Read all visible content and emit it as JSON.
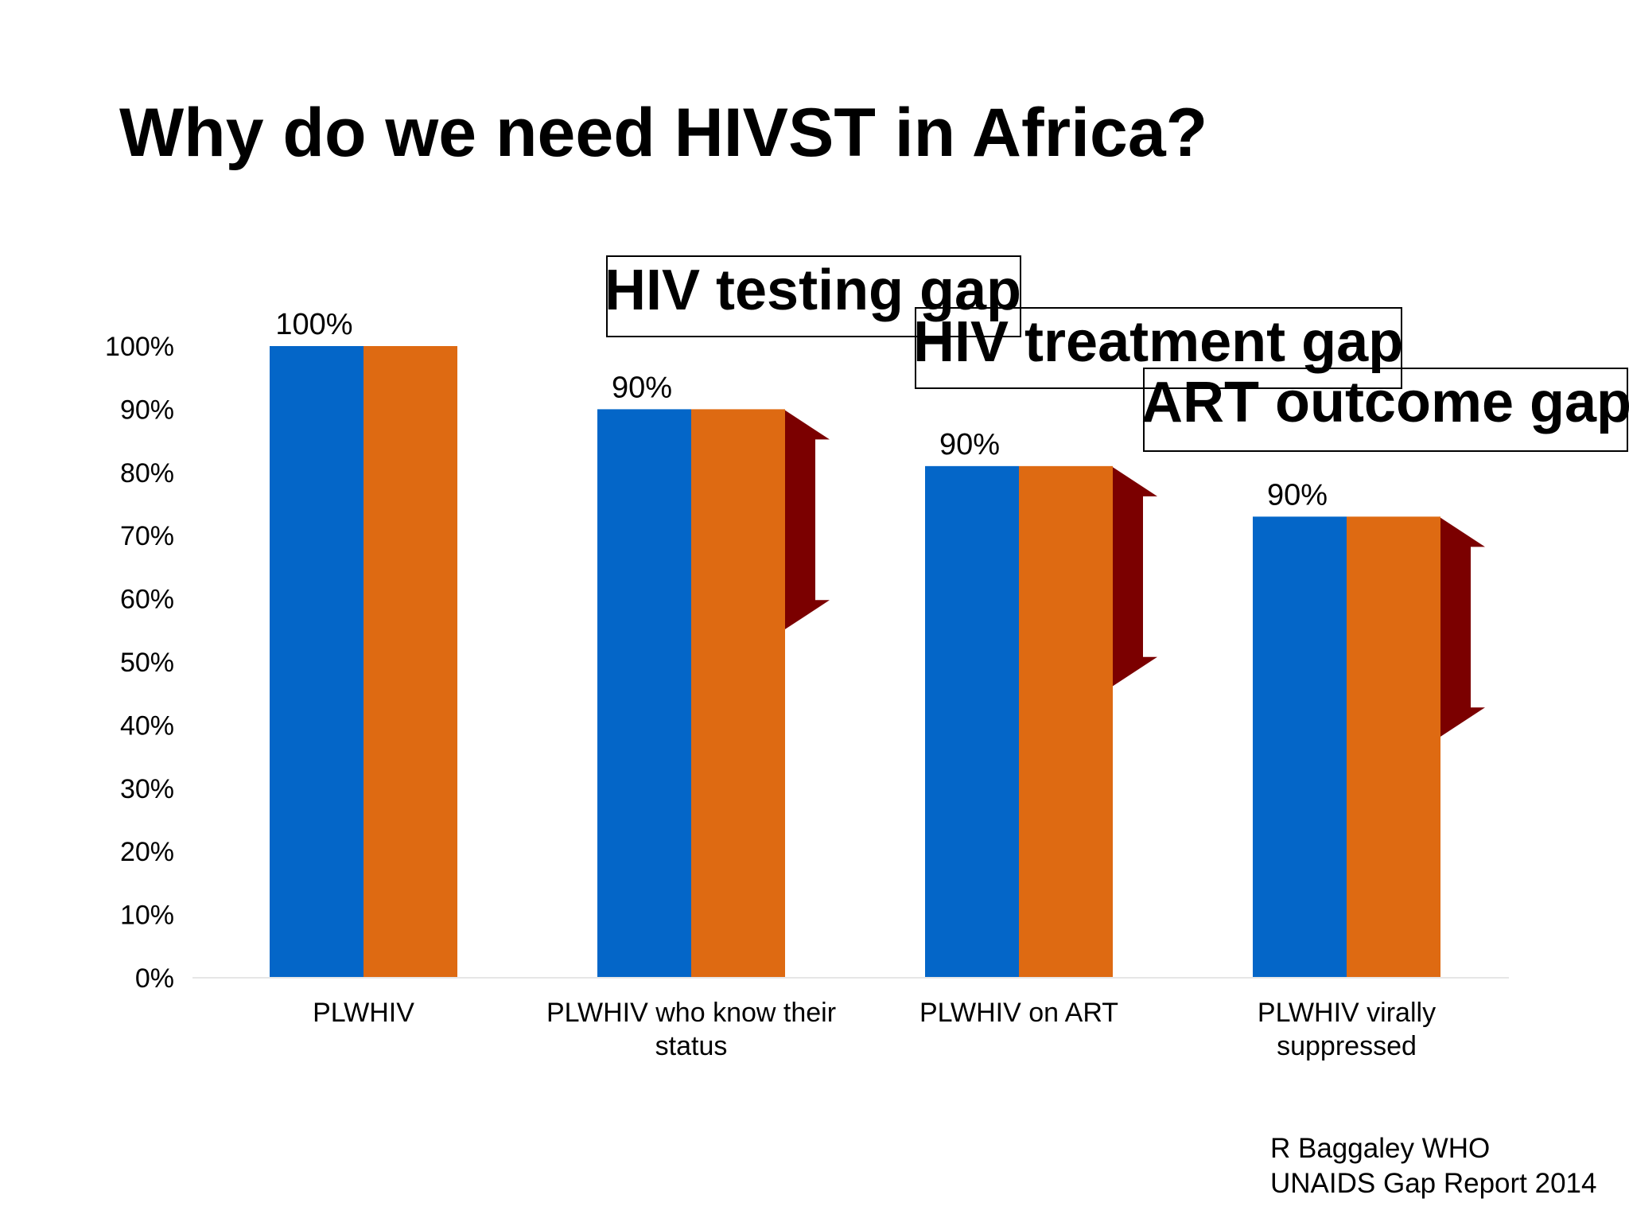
{
  "title": "Why do we need HIVST in Africa?",
  "gap_labels": {
    "testing": "HIV testing gap",
    "treatment": "HIV treatment gap",
    "outcome": "ART outcome gap"
  },
  "source": {
    "line1": "R Baggaley WHO",
    "line2": "UNAIDS Gap Report 2014"
  },
  "colors": {
    "series1": "#0466C8",
    "series2": "#DE6A12",
    "arrow": "#7B0000"
  },
  "chart_data": {
    "type": "bar",
    "categories": [
      [
        "PLWHIV"
      ],
      [
        "PLWHIV who know their",
        "status"
      ],
      [
        "PLWHIV on ART"
      ],
      [
        "PLWHIV virally",
        "suppressed"
      ]
    ],
    "series": [
      {
        "values": [
          100,
          90,
          81,
          73
        ]
      },
      {
        "values": [
          100,
          90,
          81,
          73
        ]
      }
    ],
    "data_labels": [
      "100%",
      "90%",
      "90%",
      "90%"
    ],
    "ylim": [
      0,
      100
    ],
    "yticks": [
      "0%",
      "10%",
      "20%",
      "30%",
      "40%",
      "50%",
      "60%",
      "70%",
      "80%",
      "90%",
      "100%"
    ],
    "gap_arrows": [
      {
        "category": 1,
        "top": 90,
        "bottom": 55
      },
      {
        "category": 2,
        "top": 81,
        "bottom": 46
      },
      {
        "category": 3,
        "top": 73,
        "bottom": 38
      }
    ],
    "grid": false,
    "legend": "none"
  }
}
